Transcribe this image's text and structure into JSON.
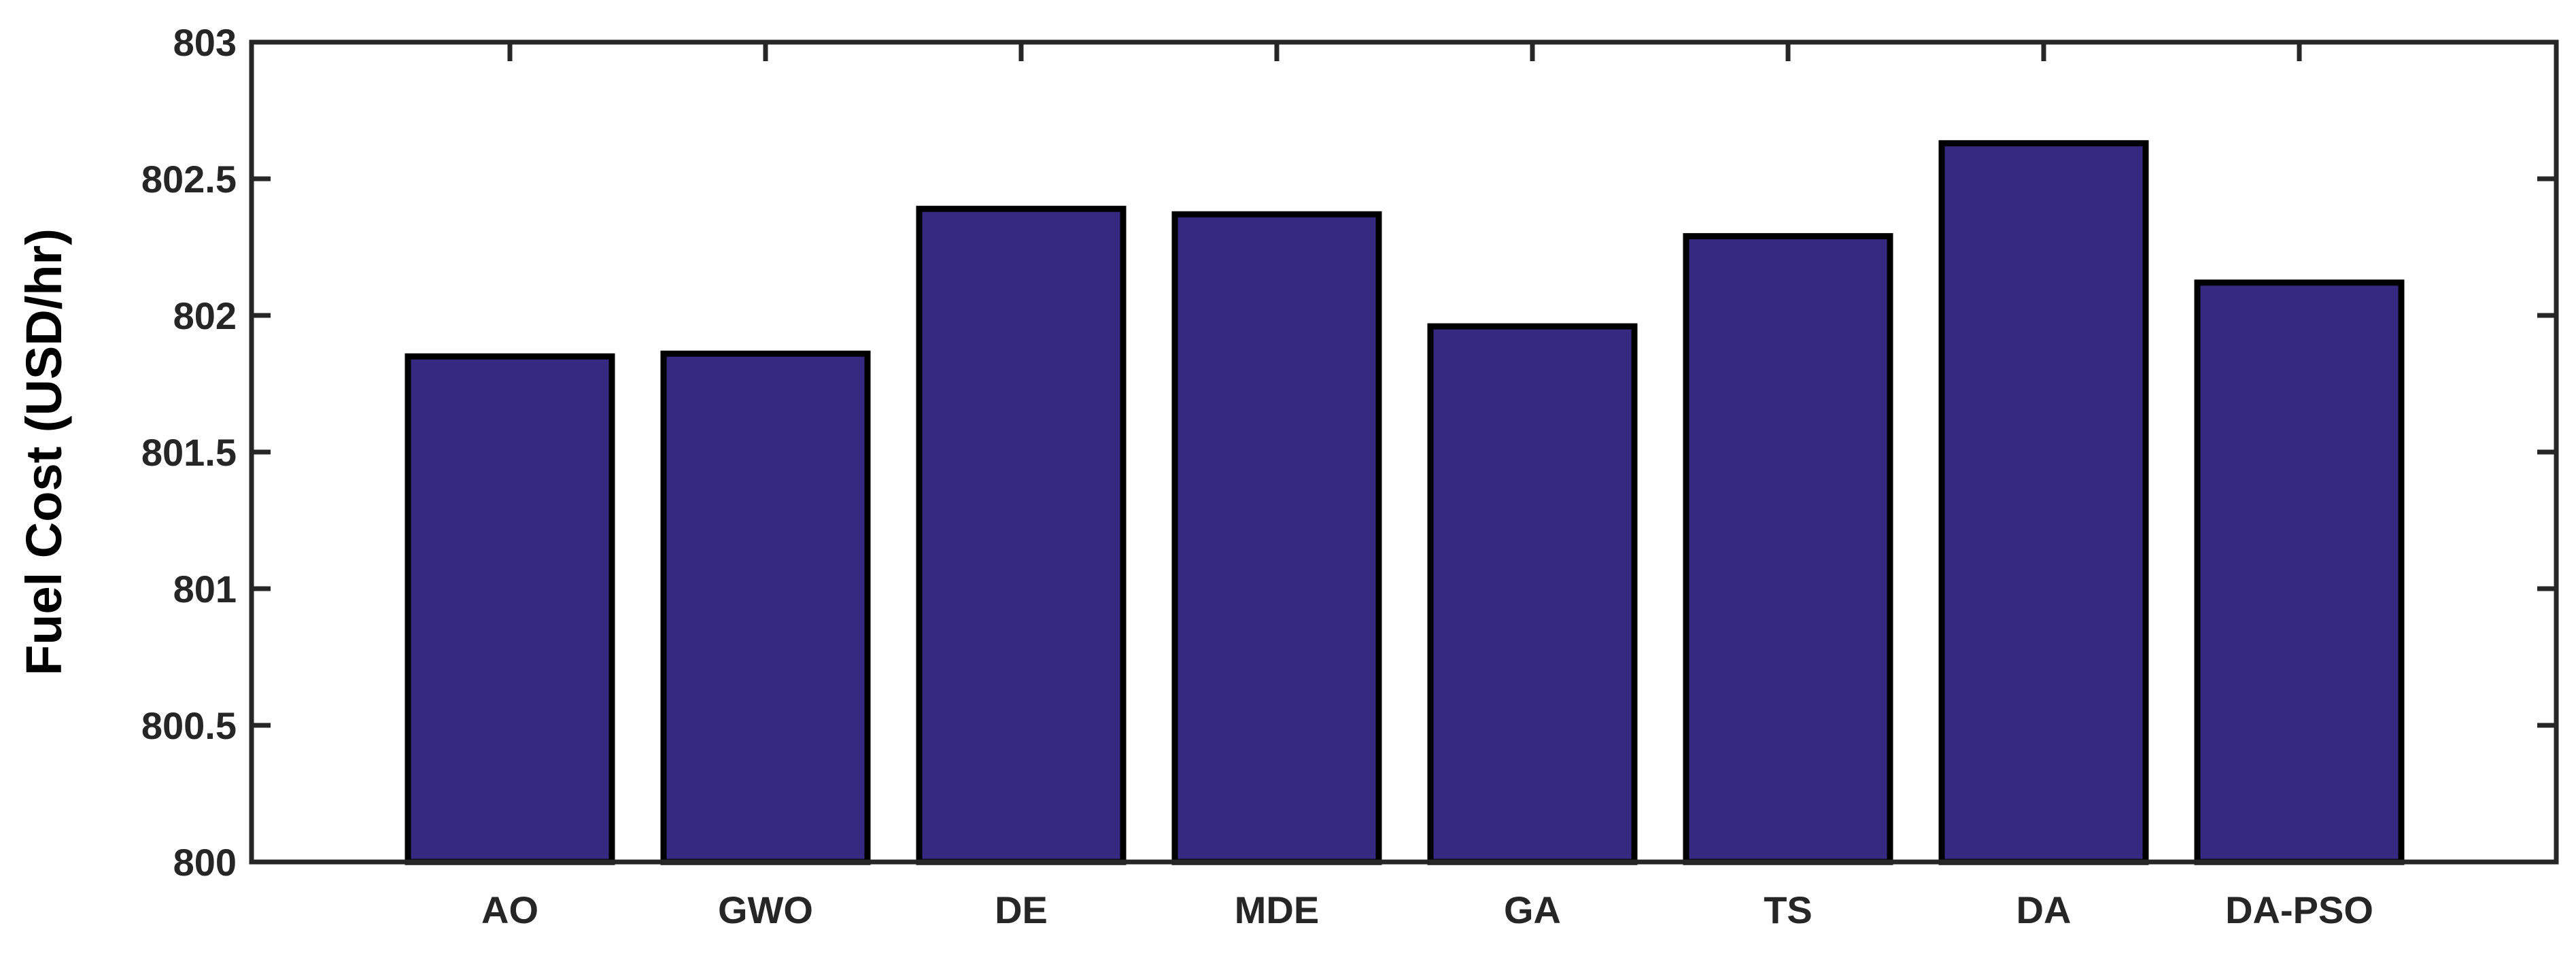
{
  "chart_data": {
    "type": "bar",
    "title": "",
    "xlabel": "",
    "ylabel": "Fuel Cost (USD/hr)",
    "categories": [
      "AO",
      "GWO",
      "DE",
      "MDE",
      "GA",
      "TS",
      "DA",
      "DA-PSO"
    ],
    "values": [
      801.85,
      801.86,
      802.39,
      802.37,
      801.96,
      802.29,
      802.63,
      802.12
    ],
    "ylim": [
      800,
      803
    ],
    "yticks": [
      800,
      800.5,
      801,
      801.5,
      802,
      802.5,
      803
    ],
    "ytick_labels": [
      "800",
      "800.5",
      "801",
      "801.5",
      "802",
      "802.5",
      "803"
    ],
    "grid": false,
    "legend": "none",
    "colors": {
      "bar_fill": "#342a82",
      "bar_edge": "#000000",
      "axis": "#262626"
    }
  }
}
